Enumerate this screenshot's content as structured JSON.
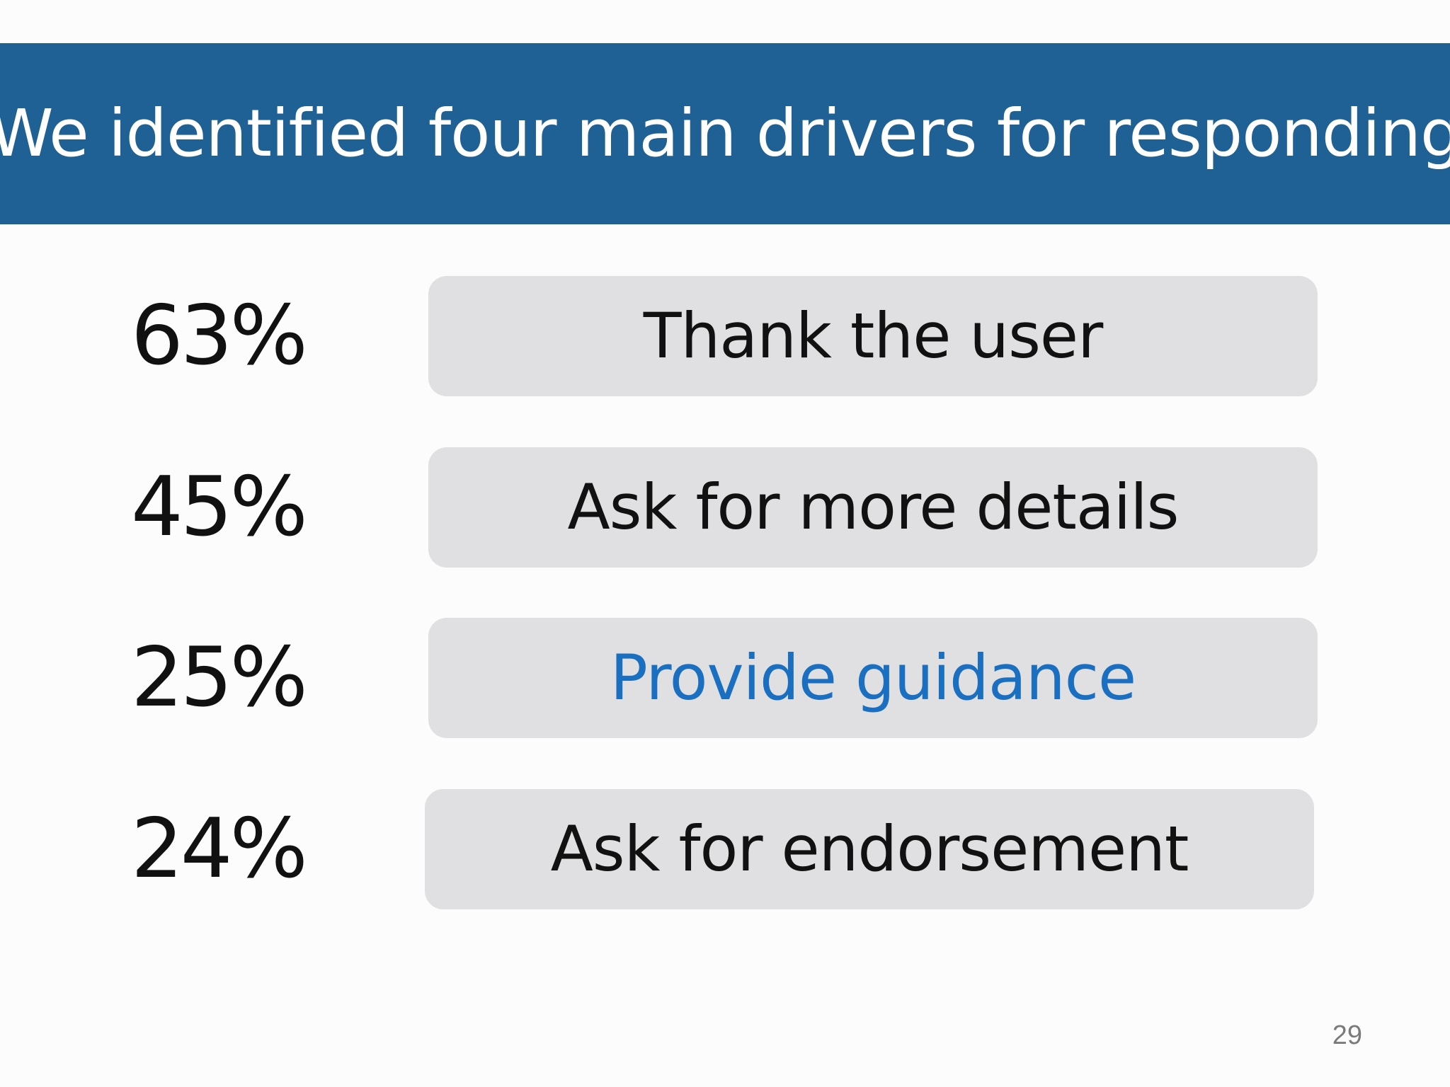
{
  "slide": {
    "title": "We identified four main drivers for responding",
    "page_number": "29",
    "accent_color": "#1f6195",
    "highlight_text_color": "#1a6fc0",
    "box_color": "#e0dfe1"
  },
  "drivers": [
    {
      "percent": "63%",
      "label": "Thank the user",
      "highlighted": false
    },
    {
      "percent": "45%",
      "label": "Ask for more details",
      "highlighted": false
    },
    {
      "percent": "25%",
      "label": "Provide guidance",
      "highlighted": true
    },
    {
      "percent": "24%",
      "label": "Ask for endorsement",
      "highlighted": false
    }
  ]
}
